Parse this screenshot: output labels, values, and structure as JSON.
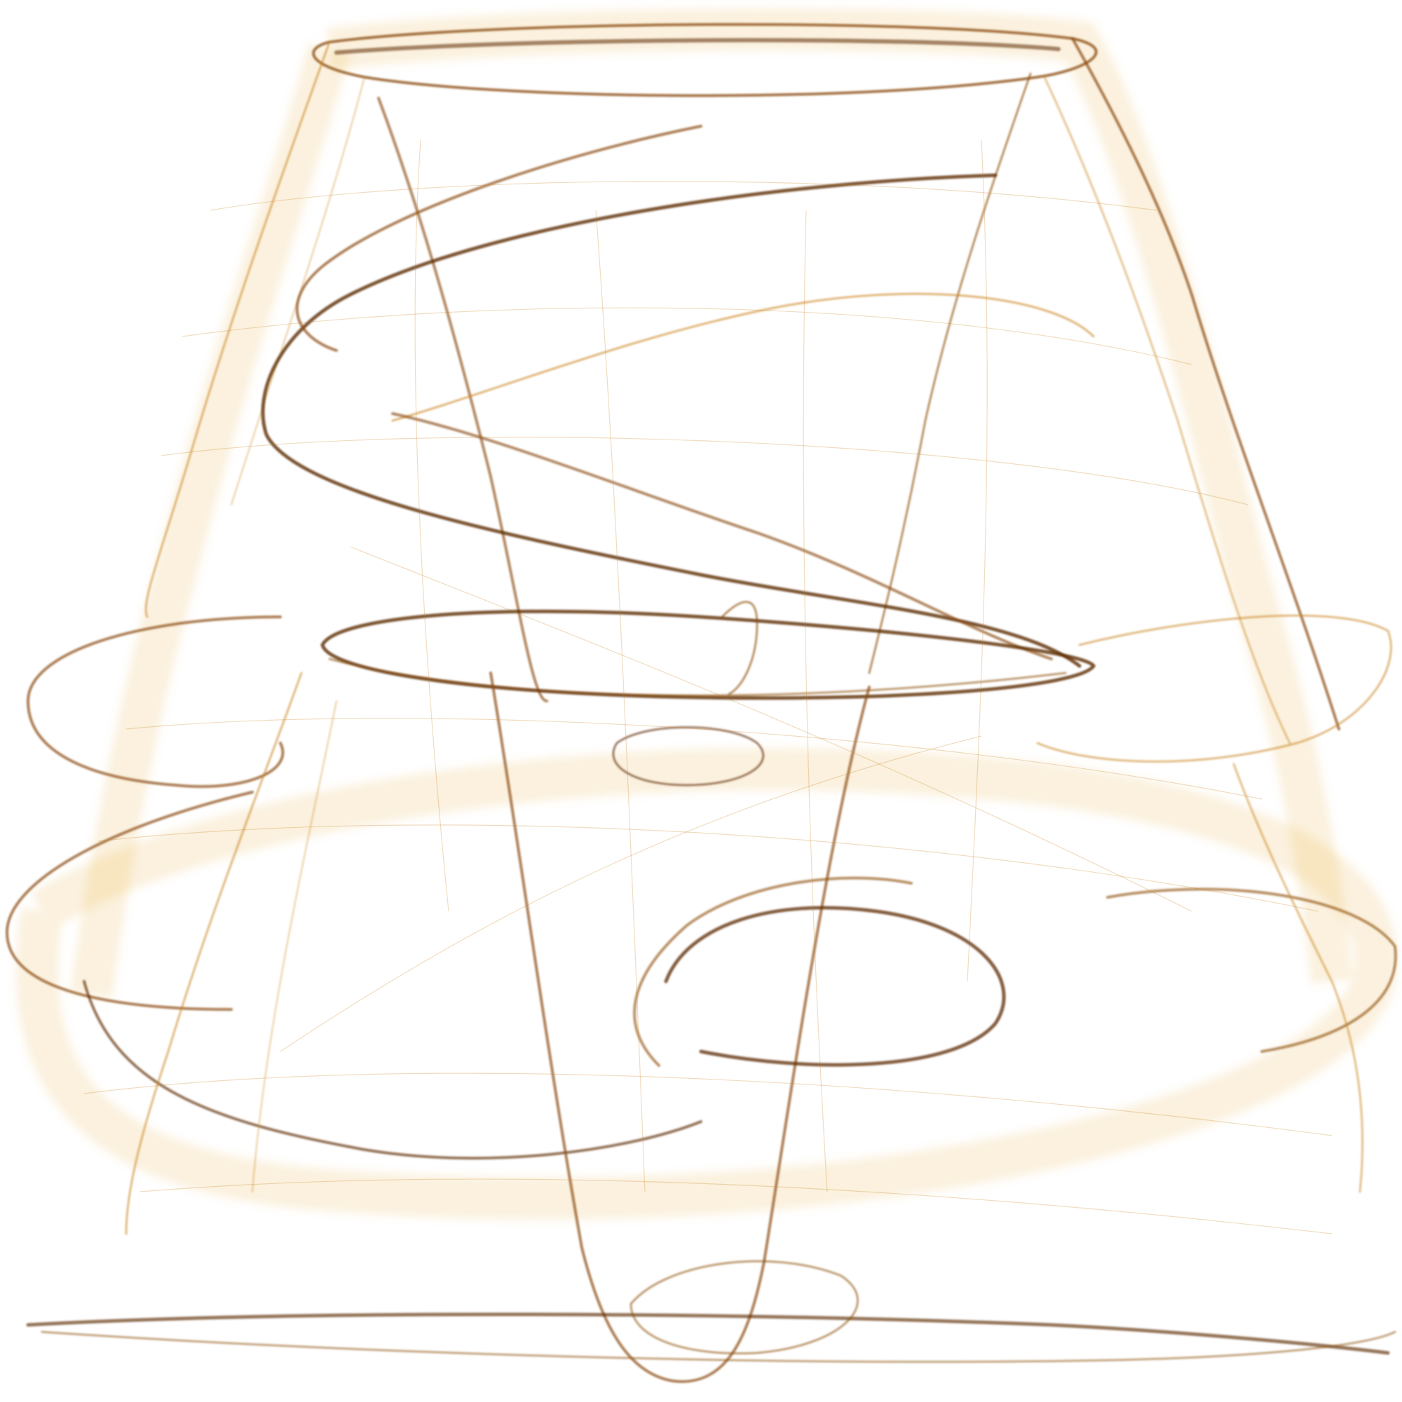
{
  "artwork": {
    "kind": "abstract-flame-fractal",
    "background_color": "#ffffff",
    "palette": {
      "light": "#e8b040",
      "mid": "#c9821c",
      "dark": "#8a4a0a",
      "deep": "#5c2a06"
    }
  }
}
